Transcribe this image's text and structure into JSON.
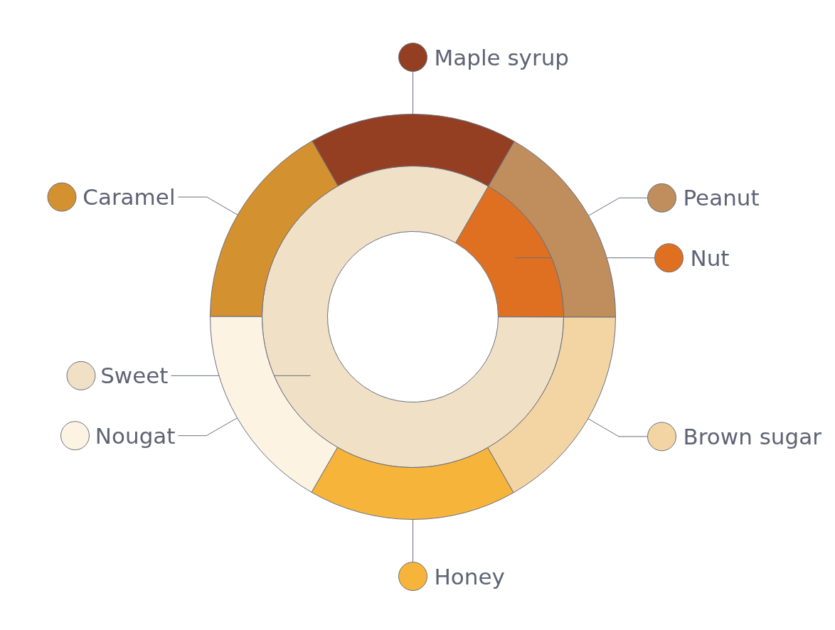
{
  "chart_data": {
    "type": "donut",
    "legend": "right",
    "categories": [
      "Peanut",
      "Brown sugar",
      "Honey",
      "Nougat",
      "Caramel",
      "Maple syrup",
      "Nut",
      "Sweet"
    ],
    "colors": [
      "#bf8e5c",
      "#f3d5a4",
      "#f6b53a",
      "#fdf3e3",
      "#d4912f",
      "#943f22",
      "#df7021",
      "#f0e0c6"
    ],
    "series": [
      {
        "values": [
          null,
          null,
          null,
          null,
          null,
          null,
          16.7,
          83.3
        ]
      },
      {
        "values": [
          16.7,
          16.7,
          16.6,
          16.7,
          16.7,
          16.6,
          null,
          null
        ]
      }
    ]
  }
}
